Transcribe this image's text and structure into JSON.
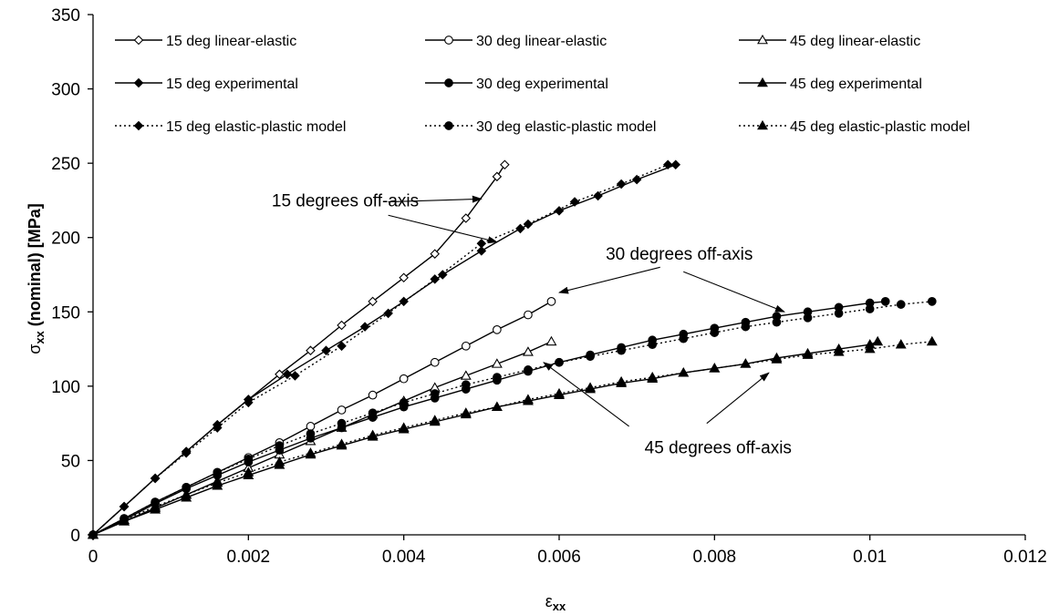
{
  "chart_data": {
    "type": "line",
    "xlabel": "ε",
    "xlabel_sub": "xx",
    "ylabel": "σ",
    "ylabel_sub": "xx",
    "ylabel_rest": " (nominal) [MPa]",
    "xlim": [
      0,
      0.012
    ],
    "ylim": [
      0,
      350
    ],
    "xticks": [
      0,
      0.002,
      0.004,
      0.006,
      0.008,
      0.01,
      0.012
    ],
    "xtick_labels": [
      "0",
      "0.002",
      "0.004",
      "0.006",
      "0.008",
      "0.01",
      "0.012"
    ],
    "yticks": [
      0,
      50,
      100,
      150,
      200,
      250,
      300,
      350
    ],
    "ytick_labels": [
      "0",
      "50",
      "100",
      "150",
      "200",
      "250",
      "300",
      "350"
    ],
    "grid": false,
    "legend_position": "top",
    "series": [
      {
        "name": "15 deg linear-elastic",
        "line": "solid",
        "marker": "diamond",
        "filled": false,
        "x": [
          0,
          0.0004,
          0.0008,
          0.0012,
          0.0016,
          0.002,
          0.0024,
          0.0028,
          0.0032,
          0.0036,
          0.004,
          0.0044,
          0.0048,
          0.0052,
          0.0053
        ],
        "y": [
          0,
          19,
          38,
          56,
          74,
          91,
          108,
          124,
          141,
          157,
          173,
          189,
          213,
          241,
          249
        ]
      },
      {
        "name": "30 deg linear-elastic",
        "line": "solid",
        "marker": "circle",
        "filled": false,
        "x": [
          0,
          0.0004,
          0.0008,
          0.0012,
          0.0016,
          0.002,
          0.0024,
          0.0028,
          0.0032,
          0.0036,
          0.004,
          0.0044,
          0.0048,
          0.0052,
          0.0056,
          0.0059
        ],
        "y": [
          0,
          11,
          22,
          32,
          42,
          52,
          62,
          73,
          84,
          94,
          105,
          116,
          127,
          138,
          148,
          157
        ]
      },
      {
        "name": "45 deg linear-elastic",
        "line": "solid",
        "marker": "triangle",
        "filled": false,
        "x": [
          0,
          0.0004,
          0.0008,
          0.0012,
          0.0016,
          0.002,
          0.0024,
          0.0028,
          0.0032,
          0.0036,
          0.004,
          0.0044,
          0.0048,
          0.0052,
          0.0056,
          0.0059
        ],
        "y": [
          0,
          9,
          18,
          27,
          36,
          45,
          54,
          63,
          72,
          81,
          90,
          99,
          107,
          115,
          123,
          130
        ]
      },
      {
        "name": "15 deg experimental",
        "line": "solid",
        "marker": "diamond",
        "filled": true,
        "x": [
          0,
          0.0004,
          0.0008,
          0.0012,
          0.0016,
          0.002,
          0.0025,
          0.003,
          0.0035,
          0.004,
          0.0045,
          0.005,
          0.0055,
          0.006,
          0.0065,
          0.007,
          0.0075
        ],
        "y": [
          0,
          19,
          38,
          56,
          74,
          91,
          108,
          124,
          140,
          157,
          175,
          191,
          206,
          218,
          228,
          239,
          249
        ]
      },
      {
        "name": "30 deg experimental",
        "line": "solid",
        "marker": "circle",
        "filled": true,
        "x": [
          0,
          0.0004,
          0.0008,
          0.0012,
          0.0016,
          0.002,
          0.0024,
          0.0028,
          0.0032,
          0.0036,
          0.004,
          0.0044,
          0.0048,
          0.0052,
          0.0056,
          0.006,
          0.0064,
          0.0068,
          0.0072,
          0.0076,
          0.008,
          0.0084,
          0.0088,
          0.0092,
          0.0096,
          0.01,
          0.0102
        ],
        "y": [
          0,
          10,
          21,
          31,
          40,
          49,
          57,
          65,
          72,
          79,
          86,
          92,
          98,
          104,
          110,
          116,
          121,
          126,
          131,
          135,
          139,
          143,
          147,
          150,
          153,
          156,
          157
        ]
      },
      {
        "name": "45 deg experimental",
        "line": "solid",
        "marker": "triangle",
        "filled": true,
        "x": [
          0,
          0.0004,
          0.0008,
          0.0012,
          0.0016,
          0.002,
          0.0024,
          0.0028,
          0.0032,
          0.0036,
          0.004,
          0.0044,
          0.0048,
          0.0052,
          0.0056,
          0.006,
          0.0064,
          0.0068,
          0.0072,
          0.0076,
          0.008,
          0.0084,
          0.0088,
          0.0092,
          0.0096,
          0.01,
          0.0101
        ],
        "y": [
          0,
          9,
          17,
          25,
          33,
          40,
          47,
          54,
          60,
          66,
          71,
          76,
          81,
          86,
          90,
          94,
          98,
          102,
          105,
          109,
          112,
          115,
          119,
          122,
          125,
          128,
          130
        ]
      },
      {
        "name": "15 deg elastic-plastic model",
        "line": "dotted",
        "marker": "diamond",
        "filled": true,
        "x": [
          0,
          0.0004,
          0.0008,
          0.0012,
          0.0016,
          0.002,
          0.0026,
          0.0032,
          0.0038,
          0.0044,
          0.005,
          0.0056,
          0.0062,
          0.0068,
          0.0074
        ],
        "y": [
          0,
          19,
          38,
          55,
          72,
          89,
          107,
          127,
          149,
          172,
          196,
          209,
          224,
          236,
          249
        ]
      },
      {
        "name": "30 deg elastic-plastic model",
        "line": "dotted",
        "marker": "circle",
        "filled": true,
        "x": [
          0,
          0.0004,
          0.0008,
          0.0012,
          0.0016,
          0.002,
          0.0024,
          0.0028,
          0.0032,
          0.0036,
          0.004,
          0.0044,
          0.0048,
          0.0052,
          0.0056,
          0.006,
          0.0064,
          0.0068,
          0.0072,
          0.0076,
          0.008,
          0.0084,
          0.0088,
          0.0092,
          0.0096,
          0.01,
          0.0104,
          0.0108
        ],
        "y": [
          0,
          11,
          22,
          32,
          42,
          51,
          60,
          68,
          75,
          82,
          89,
          95,
          101,
          106,
          111,
          116,
          120,
          124,
          128,
          132,
          136,
          140,
          143,
          146,
          149,
          152,
          155,
          157
        ]
      },
      {
        "name": "45 deg elastic-plastic model",
        "line": "dotted",
        "marker": "triangle",
        "filled": true,
        "x": [
          0,
          0.0004,
          0.0008,
          0.0012,
          0.0016,
          0.002,
          0.0024,
          0.0028,
          0.0032,
          0.0036,
          0.004,
          0.0044,
          0.0048,
          0.0052,
          0.0056,
          0.006,
          0.0064,
          0.0068,
          0.0072,
          0.0076,
          0.008,
          0.0084,
          0.0088,
          0.0092,
          0.0096,
          0.01,
          0.0104,
          0.0108
        ],
        "y": [
          0,
          10,
          19,
          27,
          35,
          42,
          49,
          55,
          61,
          67,
          72,
          77,
          82,
          86,
          91,
          95,
          99,
          103,
          106,
          109,
          112,
          115,
          118,
          121,
          123,
          125,
          128,
          130
        ]
      }
    ],
    "annotations": [
      {
        "text": "15 degrees off-axis",
        "text_at": [
          0.0023,
          221
        ],
        "arrows": [
          {
            "from": [
              0.0038,
              224
            ],
            "to": [
              0.005,
              226
            ]
          },
          {
            "from": [
              0.0038,
              215
            ],
            "to": [
              0.0052,
              197
            ]
          }
        ]
      },
      {
        "text": "30 degrees off-axis",
        "text_at": [
          0.0066,
          185
        ],
        "arrows": [
          {
            "from": [
              0.0073,
              180
            ],
            "to": [
              0.006,
              163
            ]
          }
        ]
      },
      {
        "text": "45 degrees off-axis",
        "text_at": [
          0.0071,
          55
        ],
        "arrows": [
          {
            "from": [
              0.0076,
              177
            ],
            "to": [
              0.0089,
              150
            ]
          },
          {
            "from": [
              0.0069,
              73
            ],
            "to": [
              0.0058,
              116
            ]
          },
          {
            "from": [
              0.0079,
              75
            ],
            "to": [
              0.0087,
              109
            ]
          }
        ]
      }
    ]
  }
}
